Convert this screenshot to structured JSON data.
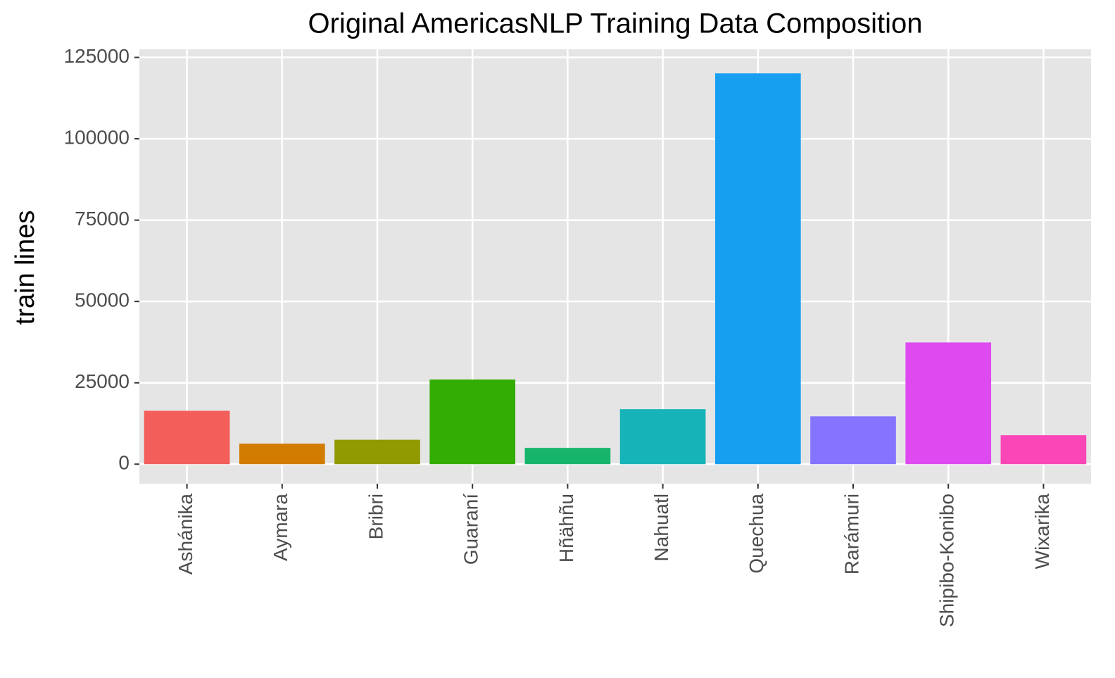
{
  "chart_data": {
    "type": "bar",
    "title": "Original AmericasNLP Training Data Composition",
    "y_label": "train lines",
    "categories": [
      "Ashánika",
      "Aymara",
      "Bribri",
      "Guaraní",
      "Hñähñu",
      "Nahuatl",
      "Quechua",
      "Rarámuri",
      "Shipibo-Konibo",
      "Wixarika"
    ],
    "values": [
      16400,
      6300,
      7500,
      26000,
      5000,
      16900,
      120100,
      14700,
      37400,
      8900
    ],
    "colors": [
      "#F35E5A",
      "#D17C00",
      "#919A00",
      "#33AD04",
      "#17B56C",
      "#16B3B8",
      "#169FF0",
      "#8474FF",
      "#DE4AF0",
      "#FA46B7"
    ],
    "ylim": [
      -6000,
      127500
    ],
    "yticks": [
      0,
      25000,
      50000,
      75000,
      100000,
      125000
    ],
    "grid": true
  }
}
